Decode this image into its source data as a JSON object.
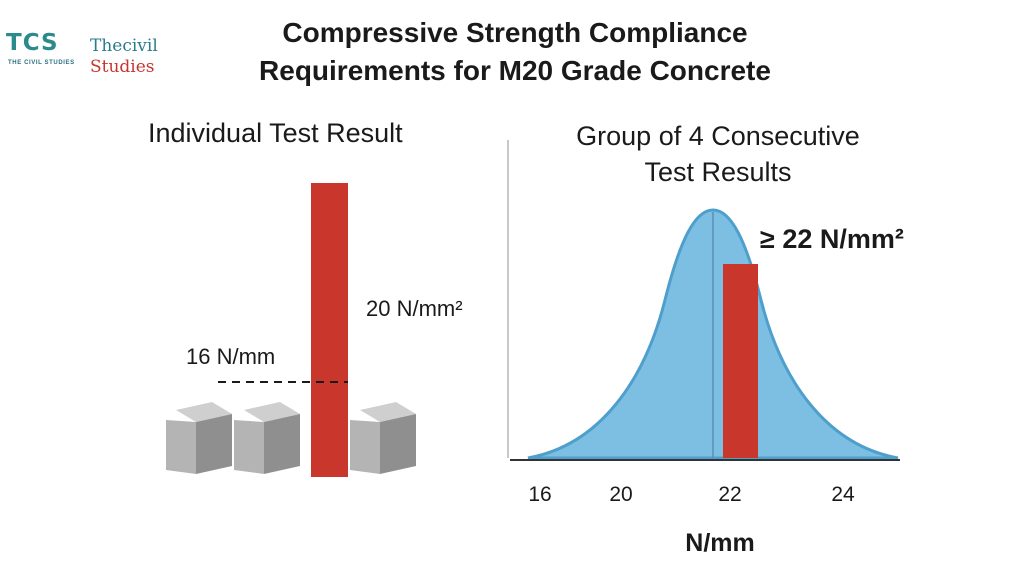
{
  "logo": {
    "mark": "TCS",
    "tagline": "THE CIVIL STUDIES",
    "name_line1": "Thecivil",
    "name_line2": "Studies"
  },
  "title": {
    "line1": "Compressive Strength Compliance",
    "line2": "Requirements for M20 Grade Concrete"
  },
  "left_panel": {
    "heading": "Individual Test Result",
    "bar_label": "20 N/mm²",
    "threshold_label": "16 N/mm"
  },
  "right_panel": {
    "heading_line1": "Group of 4 Consecutive",
    "heading_line2": "Test Results",
    "requirement_label": "≥ 22 N/mm²",
    "x_ticks": [
      "16",
      "20",
      "22",
      "24"
    ],
    "x_unit": "N/mm"
  },
  "colors": {
    "bar_red": "#c9372c",
    "curve_fill": "#7dbfe2",
    "curve_stroke": "#4f9fcd",
    "cube_gray": "#a8a8a8",
    "logo_teal": "#2a8a8c",
    "logo_red": "#c8342f"
  }
}
